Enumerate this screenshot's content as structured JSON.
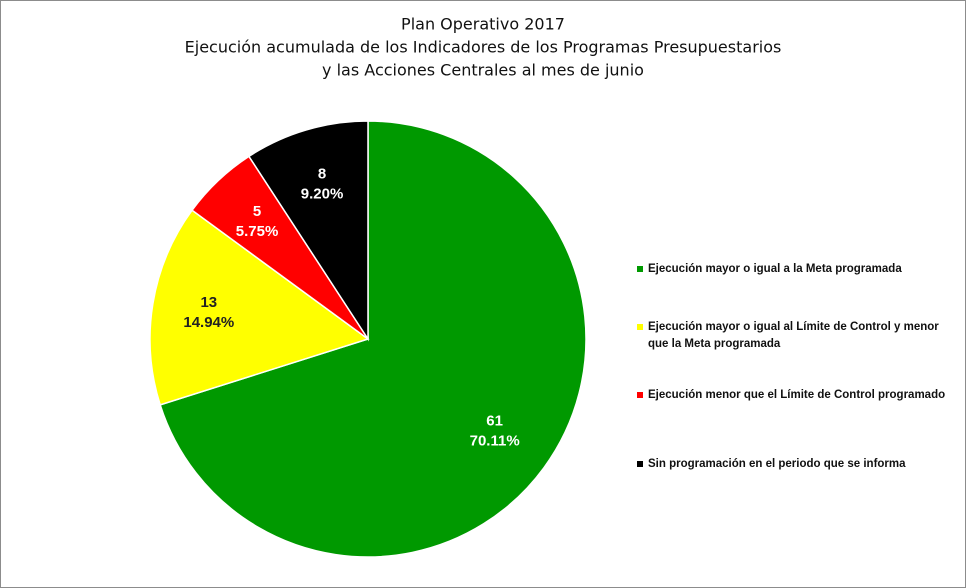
{
  "chart_data": {
    "type": "pie",
    "title": [
      "Plan Operativo 2017",
      "Ejecución acumulada de los Indicadores de los Programas Presupuestarios",
      "y las Acciones Centrales al mes de junio"
    ],
    "categories": [
      "Ejecución mayor o igual a la Meta programada",
      "Ejecución mayor o igual al Límite de Control y menor que la Meta programada",
      "Ejecución menor que el Límite de Control programado",
      "Sin programación en el periodo que se informa"
    ],
    "values": [
      61,
      13,
      5,
      8
    ],
    "percent_labels": [
      "70.11%",
      "14.94%",
      "5.75%",
      "9.20%"
    ],
    "colors": [
      "#009900",
      "#ffff00",
      "#ff0000",
      "#000000"
    ],
    "label_colors": [
      "#ffffff",
      "#222222",
      "#ffffff",
      "#ffffff"
    ],
    "legend": "right"
  }
}
